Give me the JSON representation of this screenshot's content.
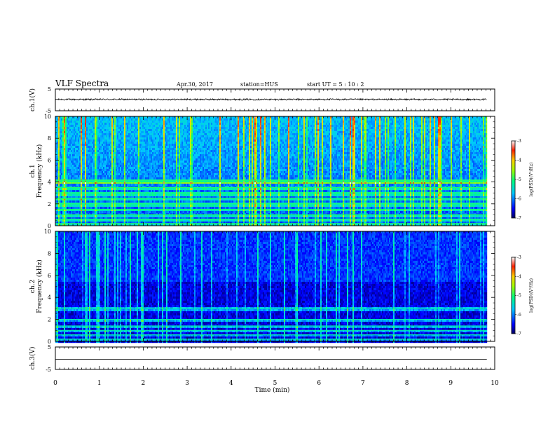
{
  "header": {
    "title": "VLF Spectra",
    "date": "Apr.30, 2017",
    "station": "station=HUS",
    "start": "start UT =  5 : 10 : 2"
  },
  "chart_data": [
    {
      "type": "line",
      "panel": "ch1-waveform",
      "ylabel": "ch.1(V)",
      "ylim": [
        -5,
        5
      ],
      "ytick_labels": [
        "5",
        "-5"
      ],
      "xlim": [
        0,
        10
      ],
      "series": [
        {
          "x": [
            0,
            9.82
          ],
          "y": [
            0.2,
            0.2
          ],
          "noise_amplitude": 0.35
        }
      ]
    },
    {
      "type": "heatmap",
      "panel": "ch1-spectrogram",
      "ylabel": "ch.1\nFrequency (kHz)",
      "ylim": [
        0,
        10
      ],
      "ytick_labels": [
        "0",
        "2",
        "4",
        "6",
        "8",
        "10"
      ],
      "xlim": [
        0,
        10
      ],
      "data_end_min": 9.82,
      "colorbar": {
        "label": "log(PSD)(V²/Hz)",
        "range": [
          -7,
          -3
        ],
        "tick_labels": [
          "-3",
          "-4",
          "-5",
          "-6",
          "-7"
        ]
      },
      "horizontal_lines_khz": [
        0.2,
        0.6,
        1.0,
        1.5,
        2.0,
        2.5,
        3.0,
        3.5,
        4.0,
        4.15
      ]
    },
    {
      "type": "heatmap",
      "panel": "ch2-spectrogram",
      "ylabel": "ch.2\nFrequency (kHz)",
      "ylim": [
        0,
        10
      ],
      "ytick_labels": [
        "0",
        "2",
        "4",
        "6",
        "8",
        "10"
      ],
      "xlim": [
        0,
        10
      ],
      "data_end_min": 9.82,
      "colorbar": {
        "label": "log(PSD)(V²/Hz)",
        "range": [
          -7,
          -3
        ],
        "tick_labels": [
          "-3",
          "-4",
          "-5",
          "-6",
          "-7"
        ]
      },
      "horizontal_lines_khz": [
        0.2,
        0.6,
        1.0,
        1.4,
        2.0,
        3.0
      ]
    },
    {
      "type": "line",
      "panel": "ch3-waveform",
      "ylabel": "ch.3(V)",
      "ylim": [
        -5,
        5
      ],
      "ytick_labels": [
        "5",
        "-5"
      ],
      "xlim": [
        0,
        10
      ],
      "xlabel": "Time (min)",
      "xtick_labels": [
        "0",
        "1",
        "2",
        "3",
        "4",
        "5",
        "6",
        "7",
        "8",
        "9",
        "10"
      ],
      "series": [
        {
          "x": [
            0,
            9.82
          ],
          "y": [
            -0.5,
            -0.5
          ]
        }
      ]
    }
  ]
}
